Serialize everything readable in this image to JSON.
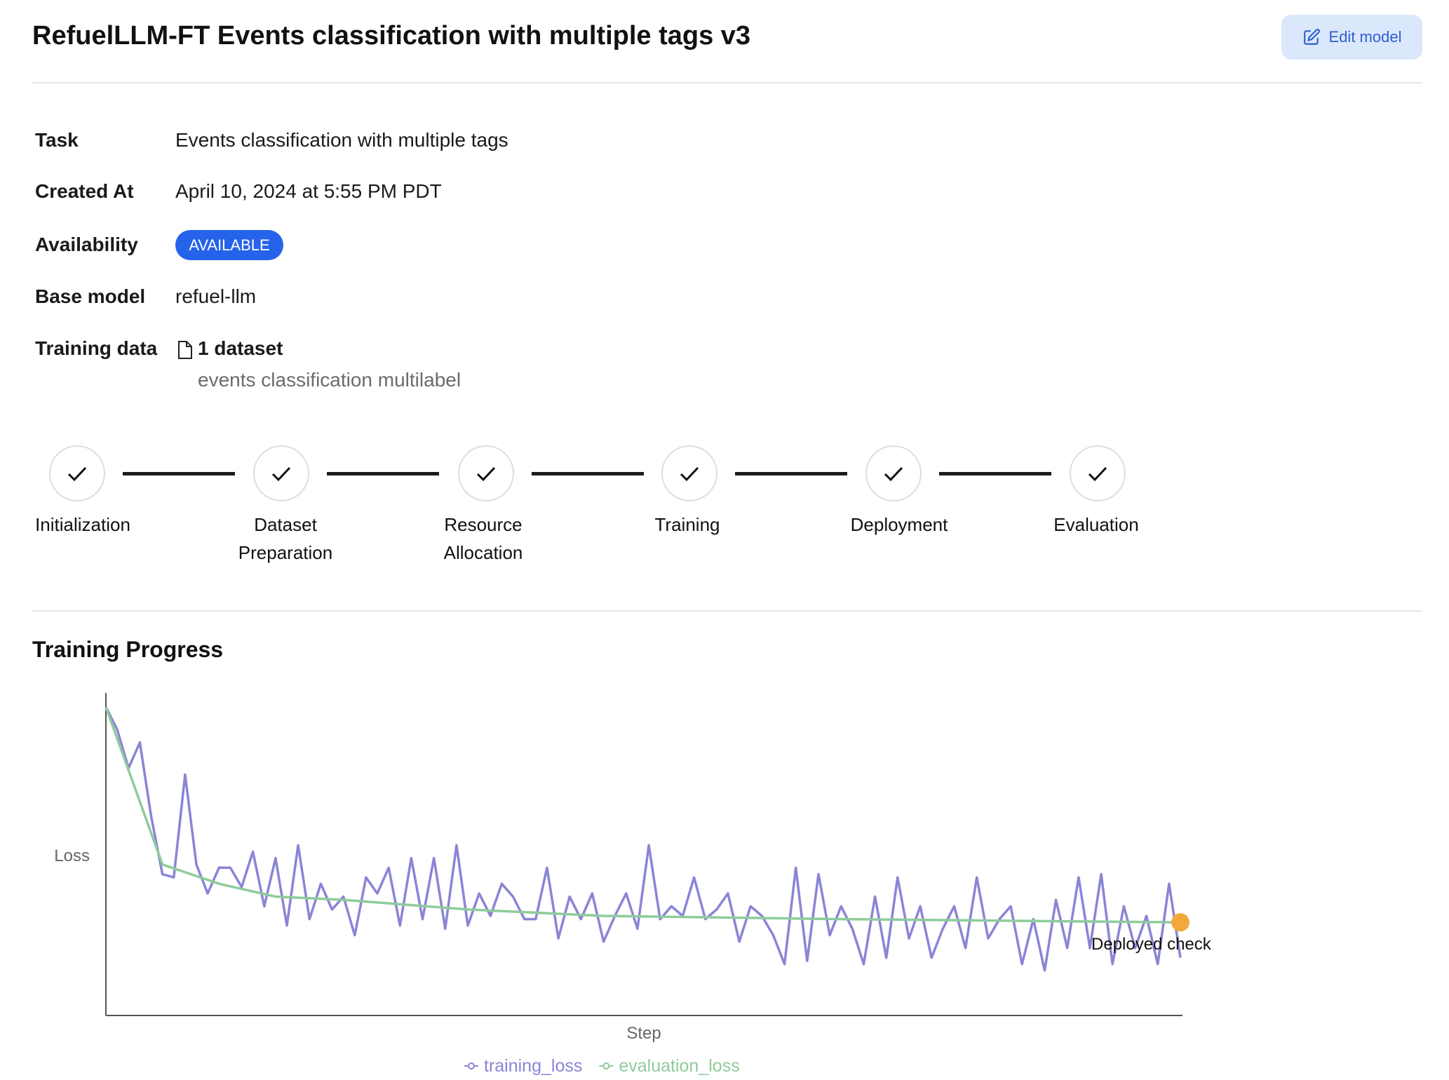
{
  "header": {
    "title": "RefuelLLM-FT Events classification with multiple tags v3",
    "edit_button": "Edit model"
  },
  "details": [
    {
      "label": "Task",
      "value": "Events classification with multiple tags"
    },
    {
      "label": "Created At",
      "value": "April 10, 2024 at 5:55 PM PDT"
    },
    {
      "label": "Availability",
      "value": "AVAILABLE"
    },
    {
      "label": "Base model",
      "value": "refuel-llm"
    },
    {
      "label": "Training data",
      "value": "1 dataset",
      "dataset": "events classification multilabel"
    }
  ],
  "steps": [
    "Initialization",
    "Dataset Preparation",
    "Resource Allocation",
    "Training",
    "Deployment",
    "Evaluation"
  ],
  "training_progress": {
    "heading": "Training Progress"
  },
  "chart_data": {
    "type": "line",
    "x_label": "Step",
    "y_label": "Loss",
    "xlim": [
      0,
      95
    ],
    "ylim": [
      0,
      100
    ],
    "series": [
      {
        "name": "training_loss",
        "color": "#8a85d6",
        "x": [
          0,
          1,
          2,
          3,
          4,
          5,
          6,
          7,
          8,
          9,
          10,
          11,
          12,
          13,
          14,
          15,
          16,
          17,
          18,
          19,
          20,
          21,
          22,
          23,
          24,
          25,
          26,
          27,
          28,
          29,
          30,
          31,
          32,
          33,
          34,
          35,
          36,
          37,
          38,
          39,
          40,
          41,
          42,
          43,
          44,
          45,
          46,
          47,
          48,
          49,
          50,
          51,
          52,
          53,
          54,
          55,
          56,
          57,
          58,
          59,
          60,
          61,
          62,
          63,
          64,
          65,
          66,
          67,
          68,
          69,
          70,
          71,
          72,
          73,
          74,
          75,
          76,
          77,
          78,
          79,
          80,
          81,
          82,
          83,
          84,
          85,
          86,
          87,
          88,
          89,
          90,
          91,
          92,
          93,
          94,
          95
        ],
        "values": [
          96,
          89,
          77,
          85,
          62,
          44,
          43,
          75,
          47,
          38,
          46,
          46,
          40,
          51,
          34,
          49,
          28,
          53,
          30,
          41,
          33,
          37,
          25,
          43,
          38,
          46,
          28,
          49,
          30,
          49,
          27,
          53,
          28,
          38,
          31,
          41,
          37,
          30,
          30,
          46,
          24,
          37,
          30,
          38,
          23,
          31,
          38,
          27,
          53,
          30,
          34,
          31,
          43,
          30,
          33,
          38,
          23,
          34,
          31,
          25,
          16,
          46,
          17,
          44,
          25,
          34,
          27,
          16,
          37,
          18,
          43,
          24,
          34,
          18,
          27,
          34,
          21,
          43,
          24,
          30,
          34,
          16,
          30,
          14,
          36,
          21,
          43,
          21,
          44,
          16,
          34,
          21,
          31,
          16,
          41,
          18
        ]
      },
      {
        "name": "evaluation_loss",
        "color": "#8fcb9b",
        "x": [
          0,
          5,
          10,
          15,
          21,
          32,
          44,
          65,
          95
        ],
        "values": [
          96,
          47,
          41,
          37,
          36,
          33,
          31,
          30,
          29
        ]
      }
    ],
    "annotation": {
      "text": "Deployed check",
      "x": 95,
      "y": 29,
      "color": "#f2a93b"
    }
  }
}
